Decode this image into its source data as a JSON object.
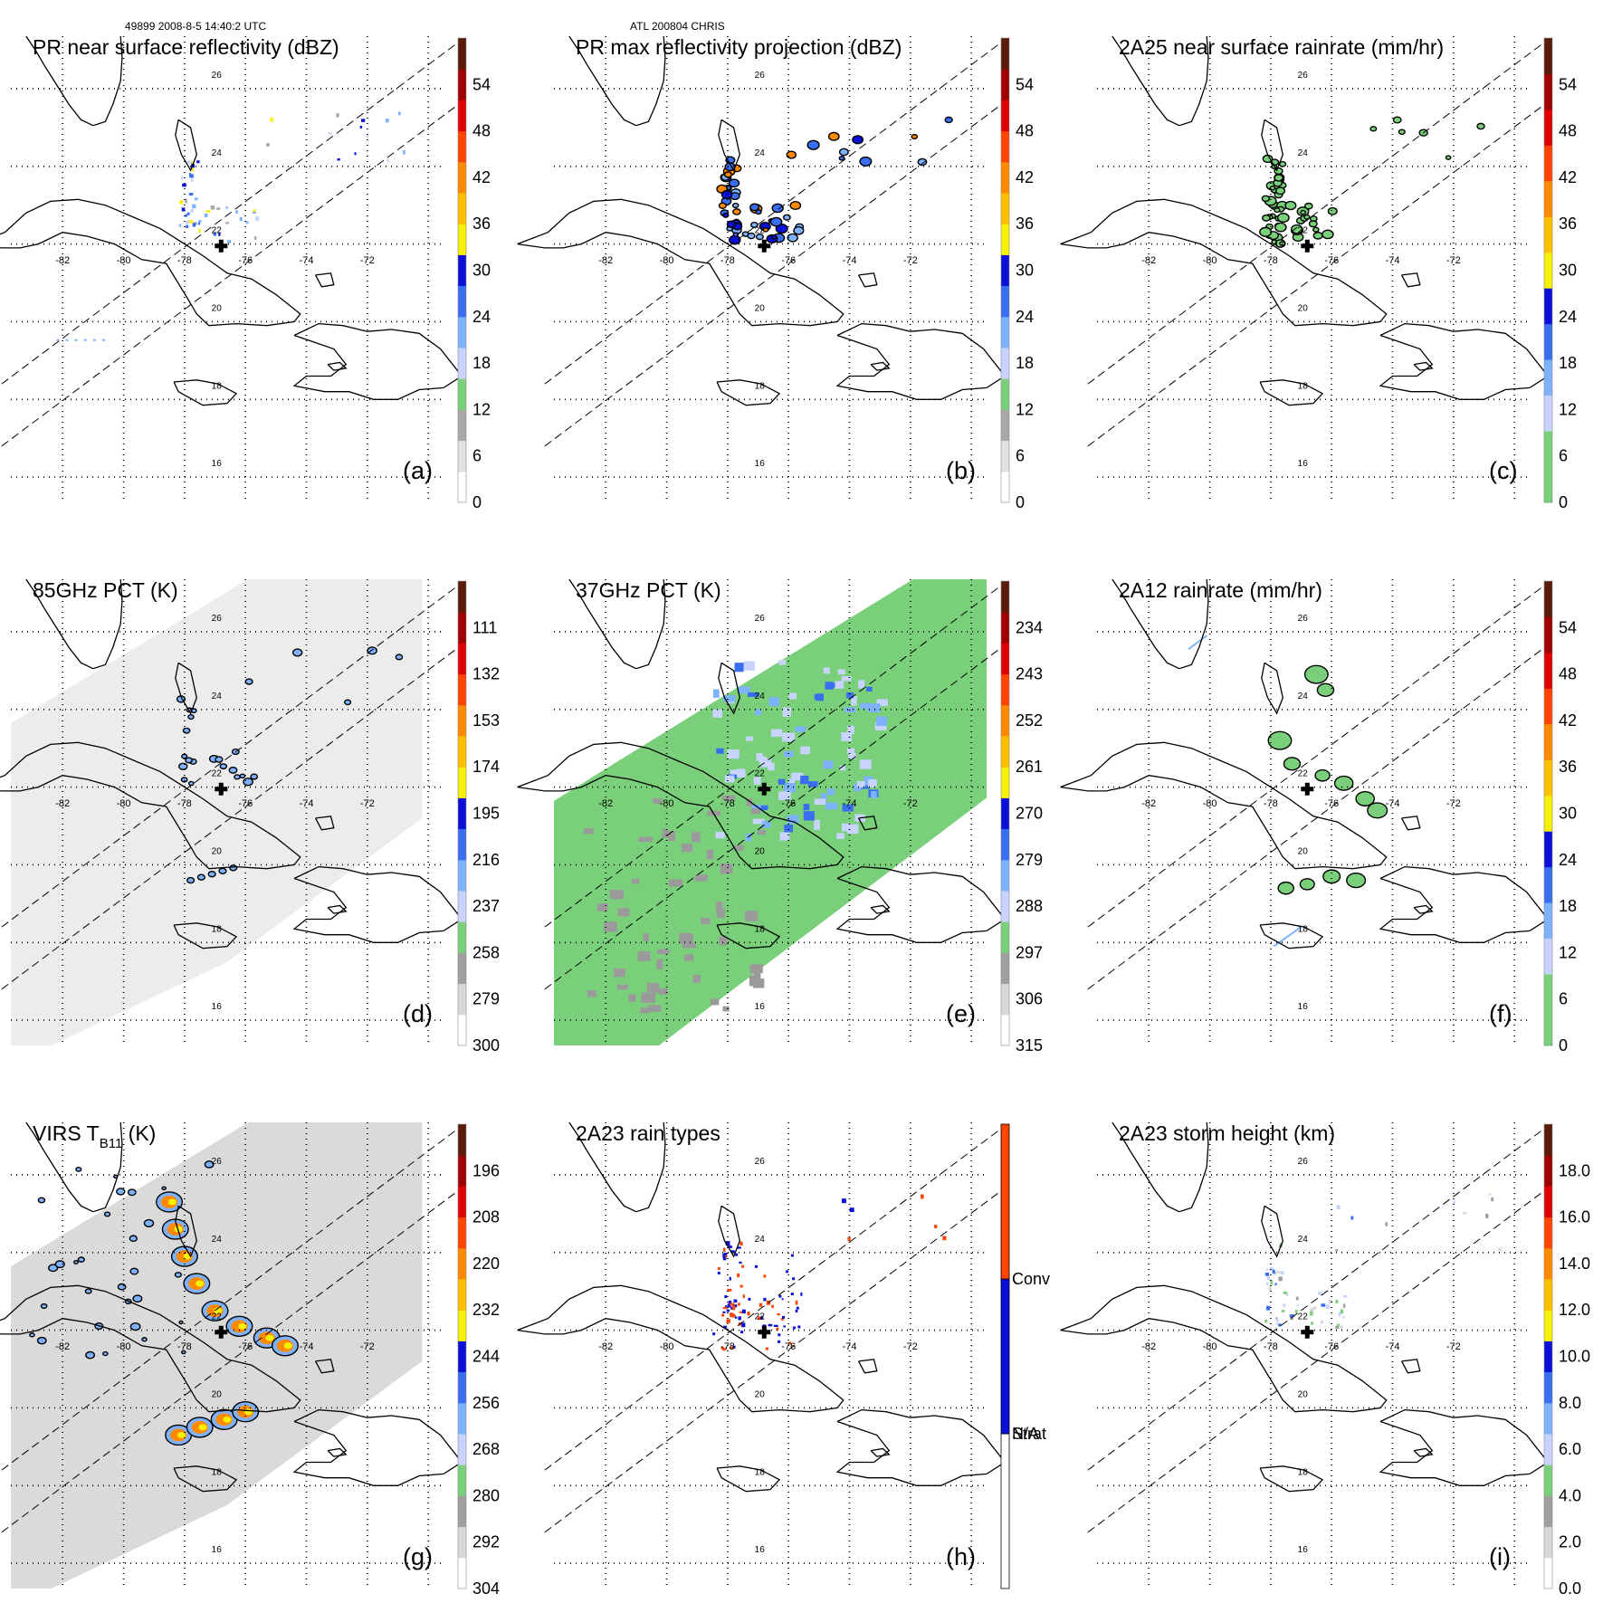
{
  "header": {
    "left": "49899 2008-8-5 14:40:2 UTC",
    "center": "ATL 200804 CHRIS"
  },
  "lat_labels": [
    "26",
    "24",
    "22",
    "20",
    "18",
    "16"
  ],
  "lon_labels": [
    "-82",
    "-80",
    "-78",
    "-76",
    "-74",
    "-72"
  ],
  "colors": {
    "coast": "#000000",
    "grid": "#000000",
    "swath_edge": "#000000",
    "center_marker": "#000000"
  },
  "panels": [
    {
      "id": "a",
      "title": "PR near surface reflectivity (dBZ)",
      "label": "(a)",
      "colorbar_ticks": [
        "0",
        "6",
        "12",
        "18",
        "24",
        "30",
        "36",
        "42",
        "48",
        "54"
      ],
      "colorbar_type": "dbz",
      "field": "pr_surface"
    },
    {
      "id": "b",
      "title": "PR max reflectivity projection (dBZ)",
      "label": "(b)",
      "colorbar_ticks": [
        "0",
        "6",
        "12",
        "18",
        "24",
        "30",
        "36",
        "42",
        "48",
        "54"
      ],
      "colorbar_type": "dbz",
      "field": "pr_max"
    },
    {
      "id": "c",
      "title": "2A25 near surface rainrate (mm/hr)",
      "label": "(c)",
      "colorbar_ticks": [
        "0",
        "6",
        "12",
        "18",
        "24",
        "30",
        "36",
        "42",
        "48",
        "54"
      ],
      "colorbar_type": "rain",
      "field": "rain_2a25"
    },
    {
      "id": "d",
      "title": "85GHz PCT (K)",
      "label": "(d)",
      "colorbar_ticks": [
        "300",
        "279",
        "258",
        "237",
        "216",
        "195",
        "174",
        "153",
        "132",
        "111"
      ],
      "colorbar_type": "pct",
      "field": "pct85"
    },
    {
      "id": "e",
      "title": "37GHz PCT (K)",
      "label": "(e)",
      "colorbar_ticks": [
        "315",
        "306",
        "297",
        "288",
        "279",
        "270",
        "261",
        "252",
        "243",
        "234"
      ],
      "colorbar_type": "pct",
      "field": "pct37"
    },
    {
      "id": "f",
      "title": "2A12 rainrate (mm/hr)",
      "label": "(f)",
      "colorbar_ticks": [
        "0",
        "6",
        "12",
        "18",
        "24",
        "30",
        "36",
        "42",
        "48",
        "54"
      ],
      "colorbar_type": "rain",
      "field": "rain_2a12"
    },
    {
      "id": "g",
      "title": "VIRS T",
      "title_sub": "B11",
      "title_suffix": " (K)",
      "label": "(g)",
      "colorbar_ticks": [
        "304",
        "292",
        "280",
        "268",
        "256",
        "244",
        "232",
        "220",
        "208",
        "196"
      ],
      "colorbar_type": "pct",
      "field": "virs"
    },
    {
      "id": "h",
      "title": "2A23 rain types",
      "label": "(h)",
      "colorbar_ticks": [
        "N/A",
        "Strat",
        "Conv"
      ],
      "colorbar_type": "raintype",
      "field": "raintype"
    },
    {
      "id": "i",
      "title": "2A23 storm height (km)",
      "label": "(i)",
      "colorbar_ticks": [
        "0.0",
        "2.0",
        "4.0",
        "6.0",
        "8.0",
        "10.0",
        "12.0",
        "14.0",
        "16.0",
        "18.0"
      ],
      "colorbar_type": "height",
      "field": "height"
    }
  ]
}
